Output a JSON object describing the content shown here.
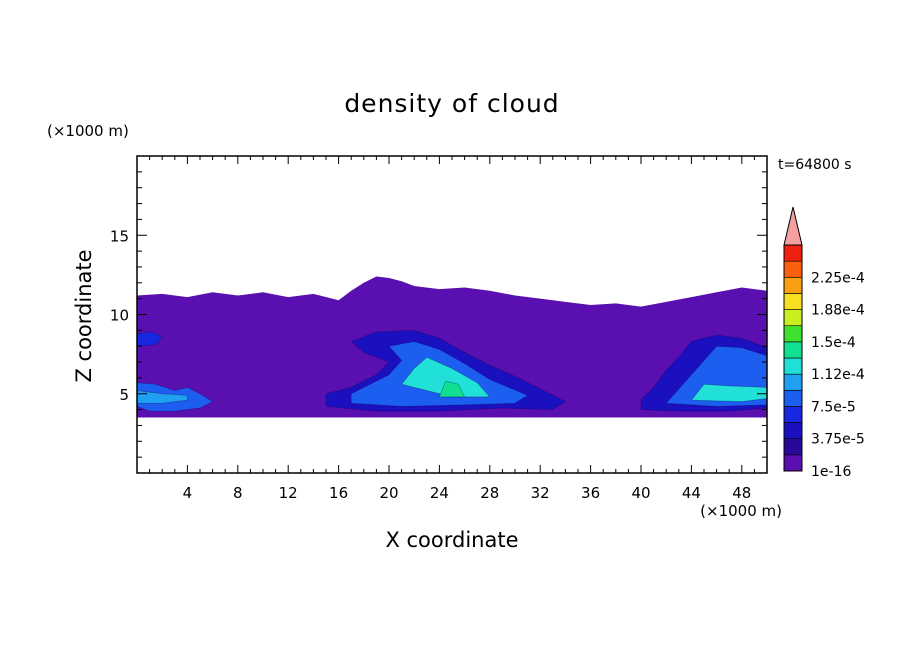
{
  "chart_data": {
    "type": "heatmap",
    "title": "density of cloud",
    "xlabel": "X coordinate",
    "ylabel": "Z coordinate",
    "x_unit": "(×1000 m)",
    "y_unit": "(×1000 m)",
    "time_label": "t=64800 s",
    "xlim": [
      0,
      50
    ],
    "ylim": [
      0,
      20
    ],
    "xticks": [
      4,
      8,
      12,
      16,
      20,
      24,
      28,
      32,
      36,
      40,
      44,
      48
    ],
    "yticks": [
      5,
      10,
      15
    ],
    "colorbar": {
      "labels": [
        "1e-16",
        "3.75e-5",
        "7.5e-5",
        "1.12e-4",
        "1.5e-4",
        "1.88e-4",
        "2.25e-4"
      ],
      "levels": [
        1e-16,
        1.875e-05,
        3.75e-05,
        5.625e-05,
        7.5e-05,
        9.375e-05,
        0.0001125,
        0.00013125,
        0.00015,
        0.00016875,
        0.0001875,
        0.00020625,
        0.000225,
        0.00024375
      ],
      "colors": [
        "#5a10b0",
        "#2a0898",
        "#1a10c0",
        "#1828e0",
        "#1c5ef0",
        "#20a0f0",
        "#20e0d8",
        "#10e090",
        "#40e030",
        "#c8f020",
        "#f8e020",
        "#f8a010",
        "#f86010",
        "#f02010"
      ],
      "extend_color": "#f4a0a0"
    },
    "cloud_base": 3.5,
    "cloud_top": [
      [
        0,
        11.2
      ],
      [
        2,
        11.3
      ],
      [
        4,
        11.1
      ],
      [
        6,
        11.4
      ],
      [
        8,
        11.2
      ],
      [
        10,
        11.4
      ],
      [
        12,
        11.1
      ],
      [
        14,
        11.3
      ],
      [
        16,
        10.9
      ],
      [
        17,
        11.5
      ],
      [
        18,
        12.0
      ],
      [
        19,
        12.4
      ],
      [
        20,
        12.3
      ],
      [
        21,
        12.1
      ],
      [
        22,
        11.8
      ],
      [
        24,
        11.6
      ],
      [
        26,
        11.7
      ],
      [
        28,
        11.5
      ],
      [
        30,
        11.2
      ],
      [
        32,
        11.0
      ],
      [
        34,
        10.8
      ],
      [
        36,
        10.6
      ],
      [
        38,
        10.7
      ],
      [
        40,
        10.5
      ],
      [
        42,
        10.8
      ],
      [
        44,
        11.1
      ],
      [
        46,
        11.4
      ],
      [
        48,
        11.7
      ],
      [
        50,
        11.5
      ]
    ],
    "regions": [
      {
        "polygon": [
          [
            0,
            4.2
          ],
          [
            1,
            3.9
          ],
          [
            3,
            3.9
          ],
          [
            5,
            4.1
          ],
          [
            6,
            4.5
          ],
          [
            5,
            5.0
          ],
          [
            4,
            5.4
          ],
          [
            3,
            5.2
          ],
          [
            1.5,
            5.6
          ],
          [
            0,
            5.7
          ]
        ],
        "value": 7.5e-05
      },
      {
        "polygon": [
          [
            0,
            4.4
          ],
          [
            2,
            4.4
          ],
          [
            4,
            4.6
          ],
          [
            4,
            4.9
          ],
          [
            2,
            5.0
          ],
          [
            0,
            5.2
          ]
        ],
        "value": 0.000112
      },
      {
        "polygon": [
          [
            0,
            8.0
          ],
          [
            1.5,
            8.1
          ],
          [
            2,
            8.6
          ],
          [
            1.2,
            8.9
          ],
          [
            0,
            8.8
          ]
        ],
        "value": 5.625e-05
      },
      {
        "polygon": [
          [
            15,
            4.2
          ],
          [
            19,
            3.9
          ],
          [
            24,
            3.9
          ],
          [
            29,
            4.1
          ],
          [
            33,
            4.0
          ],
          [
            34,
            4.5
          ],
          [
            32,
            5.3
          ],
          [
            30,
            6.1
          ],
          [
            28,
            6.8
          ],
          [
            26,
            7.6
          ],
          [
            24,
            8.5
          ],
          [
            22,
            9.0
          ],
          [
            19,
            8.9
          ],
          [
            17,
            8.3
          ],
          [
            18,
            7.6
          ],
          [
            20,
            7.0
          ],
          [
            19,
            6.2
          ],
          [
            17,
            5.4
          ],
          [
            15,
            5.0
          ]
        ],
        "value": 3.75e-05
      },
      {
        "polygon": [
          [
            17,
            4.4
          ],
          [
            21,
            4.2
          ],
          [
            26,
            4.3
          ],
          [
            30,
            4.4
          ],
          [
            31,
            4.9
          ],
          [
            28,
            5.9
          ],
          [
            26,
            6.9
          ],
          [
            24,
            7.8
          ],
          [
            22,
            8.3
          ],
          [
            20,
            8.0
          ],
          [
            21,
            7.1
          ],
          [
            20,
            6.2
          ],
          [
            18,
            5.4
          ],
          [
            17,
            5.0
          ]
        ],
        "value": 7.5e-05
      },
      {
        "polygon": [
          [
            21,
            5.6
          ],
          [
            25,
            4.8
          ],
          [
            28,
            4.8
          ],
          [
            27,
            5.7
          ],
          [
            25,
            6.6
          ],
          [
            23,
            7.3
          ],
          [
            22,
            6.6
          ]
        ],
        "value": 0.0001125
      },
      {
        "polygon": [
          [
            24,
            4.8
          ],
          [
            26,
            4.8
          ],
          [
            25.5,
            5.6
          ],
          [
            24.5,
            5.8
          ]
        ],
        "value": 0.00013125
      },
      {
        "polygon": [
          [
            40,
            4.0
          ],
          [
            43,
            3.9
          ],
          [
            47,
            3.9
          ],
          [
            50,
            4.1
          ],
          [
            50,
            7.9
          ],
          [
            48,
            8.5
          ],
          [
            46,
            8.7
          ],
          [
            44,
            8.3
          ],
          [
            43,
            7.3
          ],
          [
            42,
            6.5
          ],
          [
            41,
            5.4
          ],
          [
            40,
            4.6
          ]
        ],
        "value": 3.75e-05
      },
      {
        "polygon": [
          [
            42,
            4.4
          ],
          [
            46,
            4.2
          ],
          [
            50,
            4.3
          ],
          [
            50,
            7.4
          ],
          [
            48,
            7.9
          ],
          [
            46,
            8.0
          ],
          [
            45,
            7.1
          ],
          [
            44,
            6.2
          ],
          [
            43,
            5.3
          ]
        ],
        "value": 7.5e-05
      },
      {
        "polygon": [
          [
            44,
            4.6
          ],
          [
            48,
            4.5
          ],
          [
            50,
            4.7
          ],
          [
            50,
            5.4
          ],
          [
            47,
            5.5
          ],
          [
            45,
            5.6
          ]
        ],
        "value": 0.0001125
      }
    ]
  }
}
